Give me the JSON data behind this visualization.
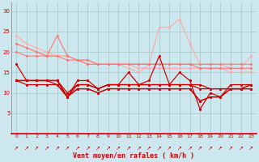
{
  "x": [
    0,
    1,
    2,
    3,
    4,
    5,
    6,
    7,
    8,
    9,
    10,
    11,
    12,
    13,
    14,
    15,
    16,
    17,
    18,
    19,
    20,
    21,
    22,
    23
  ],
  "line_lightpink1": [
    24,
    22,
    21,
    20,
    19,
    19,
    18,
    17,
    17,
    17,
    17,
    16,
    15,
    17,
    26,
    26,
    28,
    22,
    17,
    17,
    17,
    16,
    16,
    19
  ],
  "line_lightpink2": [
    22,
    21,
    20,
    19,
    19,
    19,
    18,
    18,
    17,
    17,
    17,
    17,
    16,
    16,
    16,
    16,
    16,
    16,
    16,
    16,
    16,
    15,
    15,
    15
  ],
  "line_medpink1": [
    22,
    21,
    20,
    19,
    24,
    19,
    18,
    17,
    17,
    17,
    17,
    17,
    17,
    17,
    17,
    17,
    17,
    17,
    17,
    17,
    17,
    17,
    17,
    17
  ],
  "line_medpink2": [
    20,
    19,
    19,
    19,
    19,
    18,
    18,
    18,
    17,
    17,
    17,
    17,
    17,
    17,
    17,
    17,
    17,
    17,
    16,
    16,
    16,
    16,
    16,
    16
  ],
  "line_dark1": [
    17,
    13,
    13,
    13,
    13,
    9,
    13,
    13,
    11,
    12,
    12,
    15,
    12,
    13,
    19,
    12,
    15,
    13,
    6,
    10,
    9,
    12,
    12,
    12
  ],
  "line_dark2": [
    13,
    13,
    13,
    13,
    13,
    9,
    12,
    12,
    11,
    12,
    12,
    12,
    12,
    12,
    12,
    12,
    12,
    12,
    12,
    11,
    11,
    11,
    11,
    12
  ],
  "line_dark3": [
    13,
    13,
    13,
    13,
    13,
    10,
    12,
    12,
    11,
    12,
    12,
    12,
    12,
    12,
    12,
    12,
    12,
    12,
    11,
    11,
    11,
    11,
    11,
    12
  ],
  "line_dark4": [
    13,
    13,
    13,
    13,
    12,
    9,
    11,
    11,
    10,
    11,
    11,
    11,
    11,
    11,
    11,
    11,
    11,
    11,
    8,
    9,
    9,
    11,
    11,
    11
  ],
  "line_dark5": [
    13,
    12,
    12,
    12,
    12,
    9,
    11,
    11,
    10,
    11,
    11,
    11,
    11,
    11,
    11,
    11,
    11,
    11,
    8,
    9,
    9,
    11,
    11,
    11
  ],
  "bg_color": "#cce8ee",
  "grid_color": "#aacccc",
  "color_lightpink": "#ffaaaa",
  "color_medpink": "#ff7777",
  "color_darkred": "#cc0000",
  "xlabel": "Vent moyen/en rafales ( km/h )",
  "xlabel_color": "#cc0000",
  "tick_color": "#cc0000",
  "ylim": [
    0,
    32
  ],
  "xlim": [
    -0.5,
    23.5
  ],
  "yticks": [
    5,
    10,
    15,
    20,
    25,
    30
  ],
  "xticks": [
    0,
    1,
    2,
    3,
    4,
    5,
    6,
    7,
    8,
    9,
    10,
    11,
    12,
    13,
    14,
    15,
    16,
    17,
    18,
    19,
    20,
    21,
    22,
    23
  ]
}
